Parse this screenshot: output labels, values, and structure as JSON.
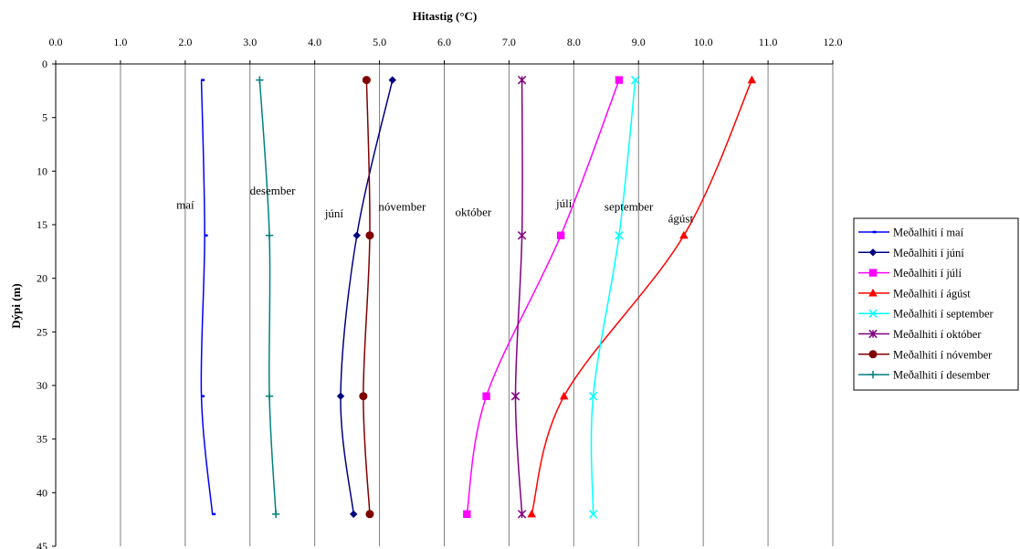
{
  "chart_data": {
    "type": "line",
    "xlabel": "Hitastig (°C)",
    "ylabel": "Dýpi (m)",
    "xlim": [
      0,
      12
    ],
    "ylim": [
      0,
      45
    ],
    "x_axis_position": "top",
    "y_axis_inverted": true,
    "x_ticks": [
      "0.0",
      "1.0",
      "2.0",
      "3.0",
      "4.0",
      "5.0",
      "6.0",
      "7.0",
      "8.0",
      "9.0",
      "10.0",
      "11.0",
      "12.0"
    ],
    "y_ticks": [
      "0",
      "5",
      "10",
      "15",
      "20",
      "25",
      "30",
      "35",
      "40",
      "45"
    ],
    "x_tick_values": [
      0,
      1,
      2,
      3,
      4,
      5,
      6,
      7,
      8,
      9,
      10,
      11,
      12
    ],
    "y_tick_values": [
      0,
      5,
      10,
      15,
      20,
      25,
      30,
      35,
      40,
      45
    ],
    "grid": "vertical",
    "legend_position": "right",
    "series": [
      {
        "name": "Meðalhiti í maí",
        "color": "#0000FF",
        "marker": "dash",
        "points": [
          [
            2.25,
            1.5
          ],
          [
            2.3,
            16
          ],
          [
            2.25,
            31
          ],
          [
            2.42,
            42
          ]
        ]
      },
      {
        "name": "Meðalhiti í júní",
        "color": "#000080",
        "marker": "diamond",
        "points": [
          [
            5.2,
            1.5
          ],
          [
            4.65,
            16
          ],
          [
            4.4,
            31
          ],
          [
            4.6,
            42
          ]
        ]
      },
      {
        "name": "Meðalhiti í júlí",
        "color": "#FF00FF",
        "marker": "square",
        "points": [
          [
            8.7,
            1.5
          ],
          [
            7.8,
            16
          ],
          [
            6.65,
            31
          ],
          [
            6.35,
            42
          ]
        ]
      },
      {
        "name": "Meðalhiti í ágúst",
        "color": "#FF0000",
        "marker": "triangle",
        "points": [
          [
            10.75,
            1.5
          ],
          [
            9.7,
            16
          ],
          [
            7.85,
            31
          ],
          [
            7.35,
            42
          ]
        ]
      },
      {
        "name": "Meðalhiti í september",
        "color": "#00FFFF",
        "marker": "x",
        "points": [
          [
            8.95,
            1.5
          ],
          [
            8.7,
            16
          ],
          [
            8.3,
            31
          ],
          [
            8.3,
            42
          ]
        ]
      },
      {
        "name": "Meðalhiti í október",
        "color": "#800080",
        "marker": "star",
        "points": [
          [
            7.2,
            1.5
          ],
          [
            7.2,
            16
          ],
          [
            7.1,
            31
          ],
          [
            7.2,
            42
          ]
        ]
      },
      {
        "name": "Meðalhiti í nóvember",
        "color": "#800000",
        "marker": "circle",
        "points": [
          [
            4.8,
            1.5
          ],
          [
            4.85,
            16
          ],
          [
            4.75,
            31
          ],
          [
            4.85,
            42
          ]
        ]
      },
      {
        "name": "Meðalhiti í desember",
        "color": "#008080",
        "marker": "plus",
        "points": [
          [
            3.15,
            1.5
          ],
          [
            3.3,
            16
          ],
          [
            3.3,
            31
          ],
          [
            3.4,
            42
          ]
        ]
      }
    ],
    "annotations": [
      {
        "text": "maí",
        "x": 2.0,
        "y": 13.5
      },
      {
        "text": "desember",
        "x": 3.35,
        "y": 12.2
      },
      {
        "text": "júní",
        "x": 4.3,
        "y": 14.3
      },
      {
        "text": "nóvember",
        "x": 5.35,
        "y": 13.7
      },
      {
        "text": "október",
        "x": 6.45,
        "y": 14.2
      },
      {
        "text": "júlí",
        "x": 7.85,
        "y": 13.4
      },
      {
        "text": "september",
        "x": 8.85,
        "y": 13.7
      },
      {
        "text": "ágúst",
        "x": 9.65,
        "y": 14.8
      }
    ]
  }
}
